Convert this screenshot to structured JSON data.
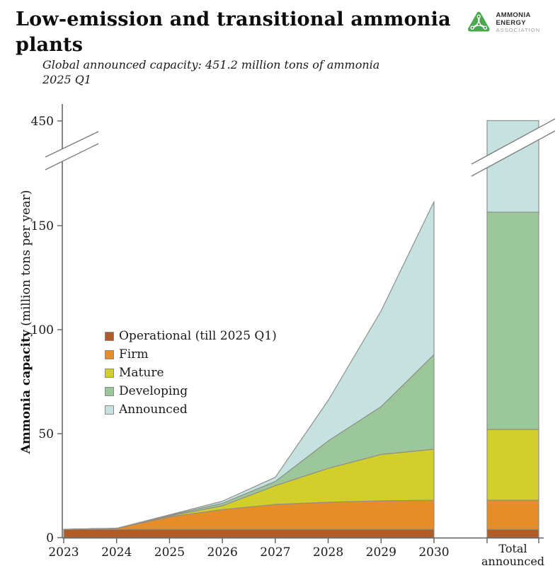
{
  "header": {
    "title": "Low-emission and transitional ammonia plants",
    "subtitle_line1": "Global announced capacity: 451.2 million tons of ammonia",
    "subtitle_line2": "2025 Q1",
    "logo": {
      "org_line1": "AMMONIA ENERGY",
      "org_line2": "ASSOCIATION",
      "brand_color": "#4aa94e"
    }
  },
  "chart_data": {
    "type": "area",
    "stacked": true,
    "title": "Low-emission and transitional ammonia plants",
    "subtitle": "Global announced capacity: 451.2 million tons of ammonia 2025 Q1",
    "xlabel": "",
    "ylabel_bold": "Ammonia capacity",
    "ylabel_normal": " (million tons per year)",
    "x_categories": [
      "2023",
      "2024",
      "2025",
      "2026",
      "2027",
      "2028",
      "2029",
      "2030"
    ],
    "y_ticks": [
      0,
      50,
      100,
      150,
      450
    ],
    "y_axis_break": {
      "between_values": [
        160,
        450
      ],
      "style": "diagonal-slash"
    },
    "grid": false,
    "legend_position": "middle-left",
    "axis_color": "#5f5f5f",
    "outline_color": "#8f8f88",
    "series": [
      {
        "name": "Operational (till 2025 Q1)",
        "color": "#b05c26",
        "values": [
          4,
          4,
          4,
          4,
          4,
          4,
          4,
          4
        ],
        "total_announced": 4
      },
      {
        "name": "Firm",
        "color": "#e78d28",
        "values": [
          0,
          0.5,
          6,
          9.5,
          12,
          13,
          13.7,
          14
        ],
        "total_announced": 14
      },
      {
        "name": "Mature",
        "color": "#d2cf2a",
        "values": [
          0,
          0,
          0.4,
          1.8,
          9,
          16.3,
          22.3,
          24.5
        ],
        "total_announced": 34
      },
      {
        "name": "Developing",
        "color": "#9cc79b",
        "values": [
          0,
          0,
          0.3,
          1.2,
          2,
          13.2,
          23,
          45.5
        ],
        "total_announced": 104.5
      },
      {
        "name": "Announced",
        "color": "#c5e2e0",
        "values": [
          0,
          0,
          0.3,
          1,
          2,
          19.5,
          46,
          83
        ],
        "total_announced": 294.7
      }
    ],
    "stack_tops_by_year": [
      4,
      4.5,
      11,
      17.5,
      29,
      66,
      109,
      171
    ],
    "total_bar": {
      "label_line1": "Total",
      "label_line2": "announced",
      "total": 451.2,
      "stack_tops": [
        4,
        18,
        52,
        156.5,
        451.2
      ]
    }
  }
}
